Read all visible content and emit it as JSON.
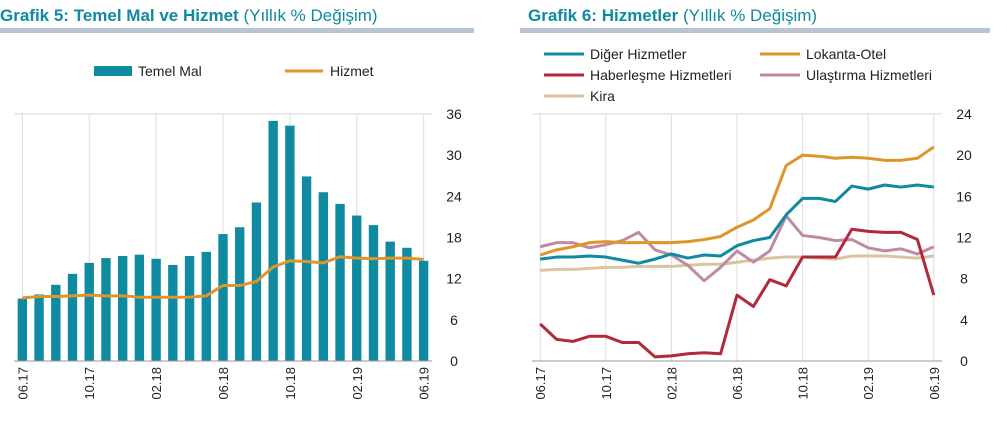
{
  "chart_data": [
    {
      "type": "bar+line",
      "title_main": "Grafik 5: Temel Mal ve Hizmet",
      "title_sub": "(Yıllık % Değişim)",
      "legend": {
        "bar": "Temel Mal",
        "line": "Hizmet"
      },
      "ylim": [
        0,
        36
      ],
      "yticks": [
        0,
        6,
        12,
        18,
        24,
        30,
        36
      ],
      "xtick_labels": [
        "06.17",
        "10.17",
        "02.18",
        "06.18",
        "10.18",
        "02.19",
        "06.19"
      ],
      "xtick_every": 4,
      "categories": [
        "06.17",
        "07.17",
        "08.17",
        "09.17",
        "10.17",
        "11.17",
        "12.17",
        "01.18",
        "02.18",
        "03.18",
        "04.18",
        "05.18",
        "06.18",
        "07.18",
        "08.18",
        "09.18",
        "10.18",
        "11.18",
        "12.18",
        "01.19",
        "02.19",
        "03.19",
        "04.19",
        "05.19",
        "06.19"
      ],
      "series": [
        {
          "name": "Temel Mal",
          "type": "bar",
          "color": "#0f8aa0",
          "values": [
            9.1,
            9.7,
            11.1,
            12.7,
            14.3,
            15.0,
            15.3,
            15.5,
            14.9,
            14.0,
            15.3,
            15.9,
            18.5,
            19.5,
            23.1,
            35.0,
            34.3,
            26.9,
            24.6,
            22.9,
            21.2,
            19.8,
            17.4,
            16.5,
            14.6
          ]
        },
        {
          "name": "Hizmet",
          "type": "line",
          "color": "#e0952a",
          "values": [
            9.2,
            9.4,
            9.4,
            9.5,
            9.6,
            9.5,
            9.5,
            9.3,
            9.3,
            9.3,
            9.3,
            9.5,
            11.0,
            11.0,
            11.6,
            13.7,
            14.6,
            14.5,
            14.3,
            15.2,
            15.0,
            14.9,
            15.0,
            15.0,
            14.8
          ]
        }
      ]
    },
    {
      "type": "line",
      "title_main": "Grafik 6: Hizmetler",
      "title_sub": "(Yıllık % Değişim)",
      "ylim": [
        0,
        24
      ],
      "yticks": [
        0,
        4,
        8,
        12,
        16,
        20,
        24
      ],
      "xtick_labels": [
        "06.17",
        "10.17",
        "02.18",
        "06.18",
        "10.18",
        "02.19",
        "06.19"
      ],
      "xtick_every": 4,
      "categories": [
        "06.17",
        "07.17",
        "08.17",
        "09.17",
        "10.17",
        "11.17",
        "12.17",
        "01.18",
        "02.18",
        "03.18",
        "04.18",
        "05.18",
        "06.18",
        "07.18",
        "08.18",
        "09.18",
        "10.18",
        "11.18",
        "12.18",
        "01.19",
        "02.19",
        "03.19",
        "04.19",
        "05.19",
        "06.19"
      ],
      "series": [
        {
          "name": "Diğer Hizmetler",
          "color": "#0f8aa0",
          "values": [
            9.9,
            10.1,
            10.1,
            10.2,
            10.1,
            9.8,
            9.5,
            9.9,
            10.4,
            10.0,
            10.3,
            10.2,
            11.2,
            11.7,
            12.0,
            14.2,
            15.8,
            15.8,
            15.5,
            17.0,
            16.7,
            17.1,
            16.9,
            17.1,
            16.9
          ]
        },
        {
          "name": "Lokanta-Otel",
          "color": "#e0952a",
          "values": [
            10.3,
            10.8,
            11.1,
            11.5,
            11.6,
            11.5,
            11.5,
            11.5,
            11.5,
            11.6,
            11.8,
            12.1,
            13.0,
            13.7,
            14.8,
            19.0,
            20.0,
            19.9,
            19.7,
            19.8,
            19.7,
            19.5,
            19.5,
            19.7,
            20.8
          ]
        },
        {
          "name": "Haberleşme Hizmetleri",
          "color": "#b02a3a",
          "values": [
            3.6,
            2.1,
            1.9,
            2.4,
            2.4,
            1.8,
            1.8,
            0.4,
            0.5,
            0.7,
            0.8,
            0.7,
            6.4,
            5.3,
            7.9,
            7.3,
            10.1,
            10.1,
            10.1,
            12.8,
            12.6,
            12.5,
            12.5,
            11.8,
            6.4
          ]
        },
        {
          "name": "Ulaştırma Hizmetleri",
          "color": "#c08aa4",
          "values": [
            11.1,
            11.5,
            11.5,
            11.0,
            11.3,
            11.7,
            12.5,
            10.8,
            10.3,
            9.3,
            7.8,
            9.1,
            10.7,
            9.6,
            10.7,
            14.1,
            12.2,
            12.0,
            11.7,
            11.8,
            11.0,
            10.7,
            10.9,
            10.4,
            11.1
          ]
        },
        {
          "name": "Kira",
          "color": "#dcc3a0",
          "values": [
            8.8,
            8.9,
            8.9,
            9.0,
            9.1,
            9.1,
            9.2,
            9.2,
            9.2,
            9.3,
            9.4,
            9.4,
            9.6,
            9.8,
            10.0,
            10.1,
            10.1,
            10.0,
            9.9,
            10.2,
            10.2,
            10.2,
            10.1,
            10.0,
            10.2
          ]
        }
      ]
    }
  ]
}
